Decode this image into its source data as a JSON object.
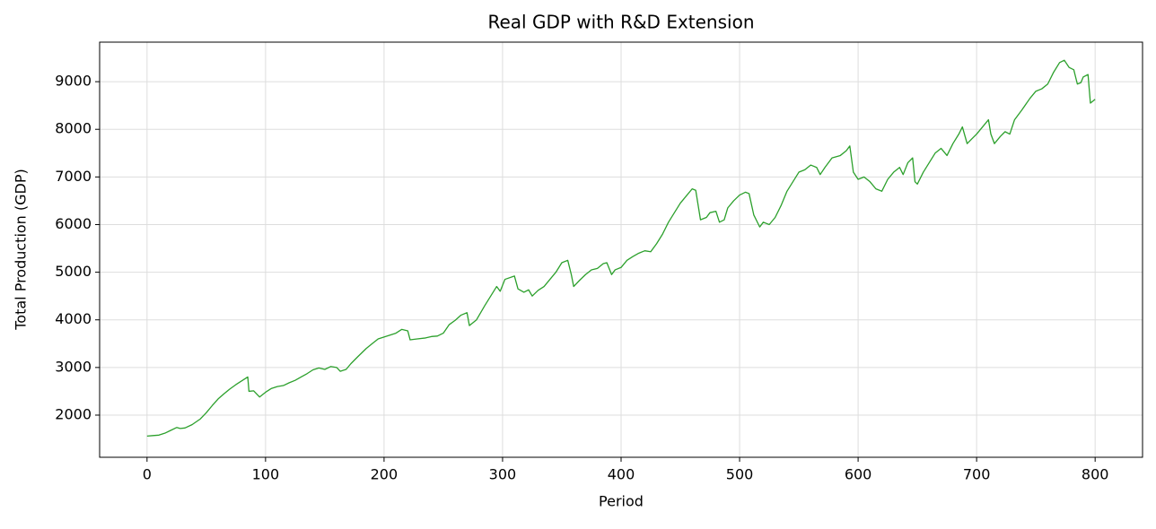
{
  "chart_data": {
    "type": "line",
    "title": "Real GDP with R&D Extension",
    "xlabel": "Period",
    "ylabel": "Total Production (GDP)",
    "x": [
      0,
      5,
      10,
      15,
      20,
      25,
      28,
      32,
      38,
      45,
      50,
      55,
      60,
      65,
      70,
      75,
      80,
      85,
      86,
      90,
      95,
      100,
      105,
      110,
      115,
      120,
      125,
      130,
      135,
      140,
      145,
      150,
      155,
      160,
      163,
      168,
      172,
      178,
      185,
      190,
      195,
      200,
      205,
      210,
      215,
      220,
      222,
      228,
      235,
      240,
      245,
      250,
      255,
      260,
      265,
      270,
      272,
      278,
      285,
      290,
      295,
      298,
      302,
      310,
      313,
      318,
      322,
      325,
      330,
      335,
      340,
      345,
      350,
      355,
      358,
      360,
      365,
      370,
      375,
      380,
      385,
      388,
      392,
      395,
      400,
      405,
      410,
      415,
      420,
      425,
      430,
      435,
      440,
      445,
      450,
      455,
      460,
      463,
      467,
      472,
      475,
      480,
      483,
      487,
      490,
      495,
      500,
      505,
      508,
      512,
      517,
      520,
      525,
      530,
      535,
      540,
      545,
      550,
      555,
      560,
      565,
      568,
      572,
      578,
      585,
      590,
      593,
      596,
      600,
      605,
      610,
      615,
      620,
      625,
      630,
      635,
      638,
      642,
      646,
      648,
      650,
      655,
      660,
      665,
      670,
      675,
      680,
      685,
      688,
      692,
      696,
      700,
      705,
      710,
      712,
      715,
      720,
      724,
      728,
      732,
      738,
      745,
      750,
      755,
      760,
      765,
      770,
      774,
      778,
      782,
      785,
      788,
      790,
      794,
      796,
      800
    ],
    "series": [
      {
        "name": "Real GDP",
        "color": "#2ca02c",
        "values": [
          1560,
          1570,
          1580,
          1620,
          1680,
          1740,
          1720,
          1730,
          1800,
          1920,
          2050,
          2200,
          2340,
          2450,
          2550,
          2640,
          2720,
          2800,
          2500,
          2510,
          2380,
          2480,
          2560,
          2600,
          2620,
          2680,
          2730,
          2800,
          2870,
          2950,
          2990,
          2960,
          3020,
          3000,
          2920,
          2960,
          3080,
          3230,
          3400,
          3500,
          3600,
          3640,
          3680,
          3720,
          3800,
          3770,
          3580,
          3600,
          3620,
          3650,
          3660,
          3720,
          3900,
          3990,
          4100,
          4150,
          3880,
          4000,
          4300,
          4500,
          4700,
          4600,
          4850,
          4920,
          4650,
          4580,
          4630,
          4500,
          4620,
          4700,
          4850,
          5000,
          5200,
          5250,
          4950,
          4700,
          4830,
          4950,
          5050,
          5080,
          5180,
          5200,
          4950,
          5050,
          5100,
          5250,
          5330,
          5400,
          5450,
          5430,
          5600,
          5800,
          6050,
          6250,
          6450,
          6600,
          6750,
          6720,
          6100,
          6150,
          6250,
          6280,
          6050,
          6100,
          6350,
          6500,
          6620,
          6680,
          6650,
          6200,
          5950,
          6050,
          6000,
          6150,
          6400,
          6700,
          6900,
          7100,
          7150,
          7250,
          7200,
          7050,
          7200,
          7400,
          7450,
          7550,
          7650,
          7100,
          6950,
          7000,
          6900,
          6750,
          6700,
          6950,
          7100,
          7200,
          7050,
          7300,
          7400,
          6900,
          6850,
          7100,
          7300,
          7500,
          7600,
          7450,
          7700,
          7900,
          8050,
          7700,
          7800,
          7900,
          8050,
          8200,
          7900,
          7700,
          7850,
          7950,
          7900,
          8200,
          8400,
          8650,
          8800,
          8850,
          8950,
          9200,
          9400,
          9450,
          9300,
          9250,
          8950,
          8980,
          9100,
          9150,
          8550,
          8630
        ]
      }
    ],
    "xlim": [
      -40,
      840
    ],
    "ylim": [
      1115,
      9830
    ],
    "xticks": [
      0,
      100,
      200,
      300,
      400,
      500,
      600,
      700,
      800
    ],
    "yticks": [
      2000,
      3000,
      4000,
      5000,
      6000,
      7000,
      8000,
      9000
    ],
    "grid": true
  }
}
